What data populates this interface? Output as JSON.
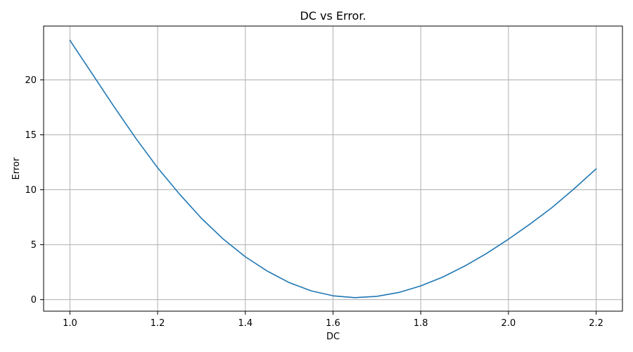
{
  "chart_data": {
    "type": "line",
    "title": "DC vs Error.",
    "xlabel": "DC",
    "ylabel": "Error",
    "xlim": [
      0.94,
      2.26
    ],
    "ylim": [
      -1.05,
      24.9
    ],
    "xticks": [
      1.0,
      1.2,
      1.4,
      1.6,
      1.8,
      2.0,
      2.2
    ],
    "xtick_labels": [
      "1.0",
      "1.2",
      "1.4",
      "1.6",
      "1.8",
      "2.0",
      "2.2"
    ],
    "yticks": [
      0,
      5,
      10,
      15,
      20
    ],
    "ytick_labels": [
      "0",
      "5",
      "10",
      "15",
      "20"
    ],
    "grid": true,
    "series": [
      {
        "color": "#1f77b4",
        "x": [
          1.0,
          1.05,
          1.1,
          1.15,
          1.2,
          1.25,
          1.3,
          1.35,
          1.4,
          1.45,
          1.5,
          1.55,
          1.6,
          1.65,
          1.7,
          1.75,
          1.8,
          1.85,
          1.9,
          1.95,
          2.0,
          2.05,
          2.1,
          2.15,
          2.2
        ],
        "y": [
          23.6,
          20.6,
          17.6,
          14.7,
          12.0,
          9.6,
          7.4,
          5.5,
          3.9,
          2.6,
          1.55,
          0.8,
          0.35,
          0.18,
          0.3,
          0.65,
          1.25,
          2.05,
          3.05,
          4.2,
          5.5,
          6.9,
          8.4,
          10.1,
          11.9
        ]
      }
    ]
  }
}
